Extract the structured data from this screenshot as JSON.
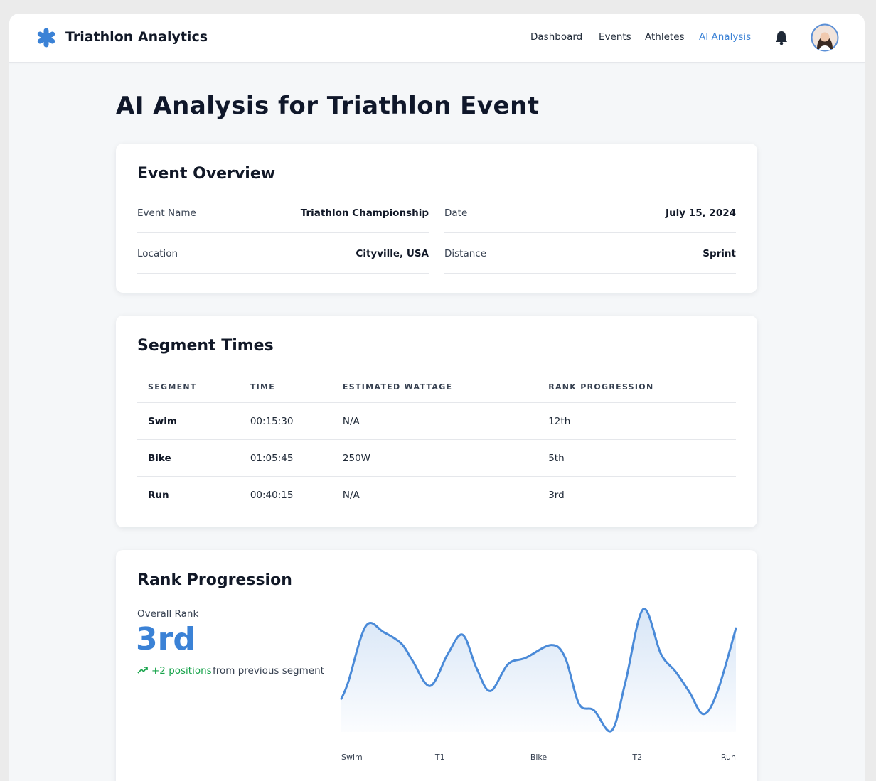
{
  "header": {
    "title": "Triathlon Analytics",
    "nav": [
      "Dashboard",
      "Events",
      "Athletes",
      "AI Analysis"
    ]
  },
  "page_title": "AI Analysis for Triathlon Event",
  "overview": {
    "title": "Event Overview",
    "fields": [
      {
        "label": "Event Name",
        "value": "Triathlon Championship"
      },
      {
        "label": "Date",
        "value": "July 15, 2024"
      },
      {
        "label": "Location",
        "value": "Cityville, USA"
      },
      {
        "label": "Distance",
        "value": "Sprint"
      }
    ]
  },
  "segments": {
    "title": "Segment Times",
    "columns": [
      "SEGMENT",
      "TIME",
      "ESTIMATED WATTAGE",
      "RANK PROGRESSION"
    ],
    "rows": [
      [
        "Swim",
        "00:15:30",
        "N/A",
        "12th"
      ],
      [
        "Bike",
        "01:05:45",
        "250W",
        "5th"
      ],
      [
        "Run",
        "00:40:15",
        "N/A",
        "3rd"
      ]
    ]
  },
  "rank": {
    "title": "Rank Progression",
    "label": "Overall Rank",
    "value": "3rd",
    "change": "+2 positions",
    "change_note": "from previous segment"
  },
  "chart_data": {
    "type": "area",
    "color": "#4a8ad8",
    "x": [
      0,
      0.07,
      0.25,
      0.43,
      0.61,
      0.72,
      0.9,
      1.08,
      1.23,
      1.37,
      1.51,
      1.69,
      1.87,
      2.13,
      2.27,
      2.41,
      2.56,
      2.74,
      2.88,
      3.06,
      3.24,
      3.39,
      3.53,
      3.67,
      3.81,
      4
    ],
    "values": [
      26,
      39,
      83,
      78,
      69,
      56,
      36,
      61,
      76,
      50,
      32,
      53,
      58,
      68,
      58,
      22,
      17,
      1,
      39,
      96,
      61,
      47,
      31,
      14,
      31,
      81
    ],
    "xlim": [
      0,
      4
    ],
    "ylim": [
      0,
      100
    ],
    "xticks": [
      {
        "value": 0,
        "label": "Swim"
      },
      {
        "value": 1,
        "label": "T1"
      },
      {
        "value": 2,
        "label": "Bike"
      },
      {
        "value": 3,
        "label": "T2"
      },
      {
        "value": 4,
        "label": "Run"
      }
    ]
  }
}
